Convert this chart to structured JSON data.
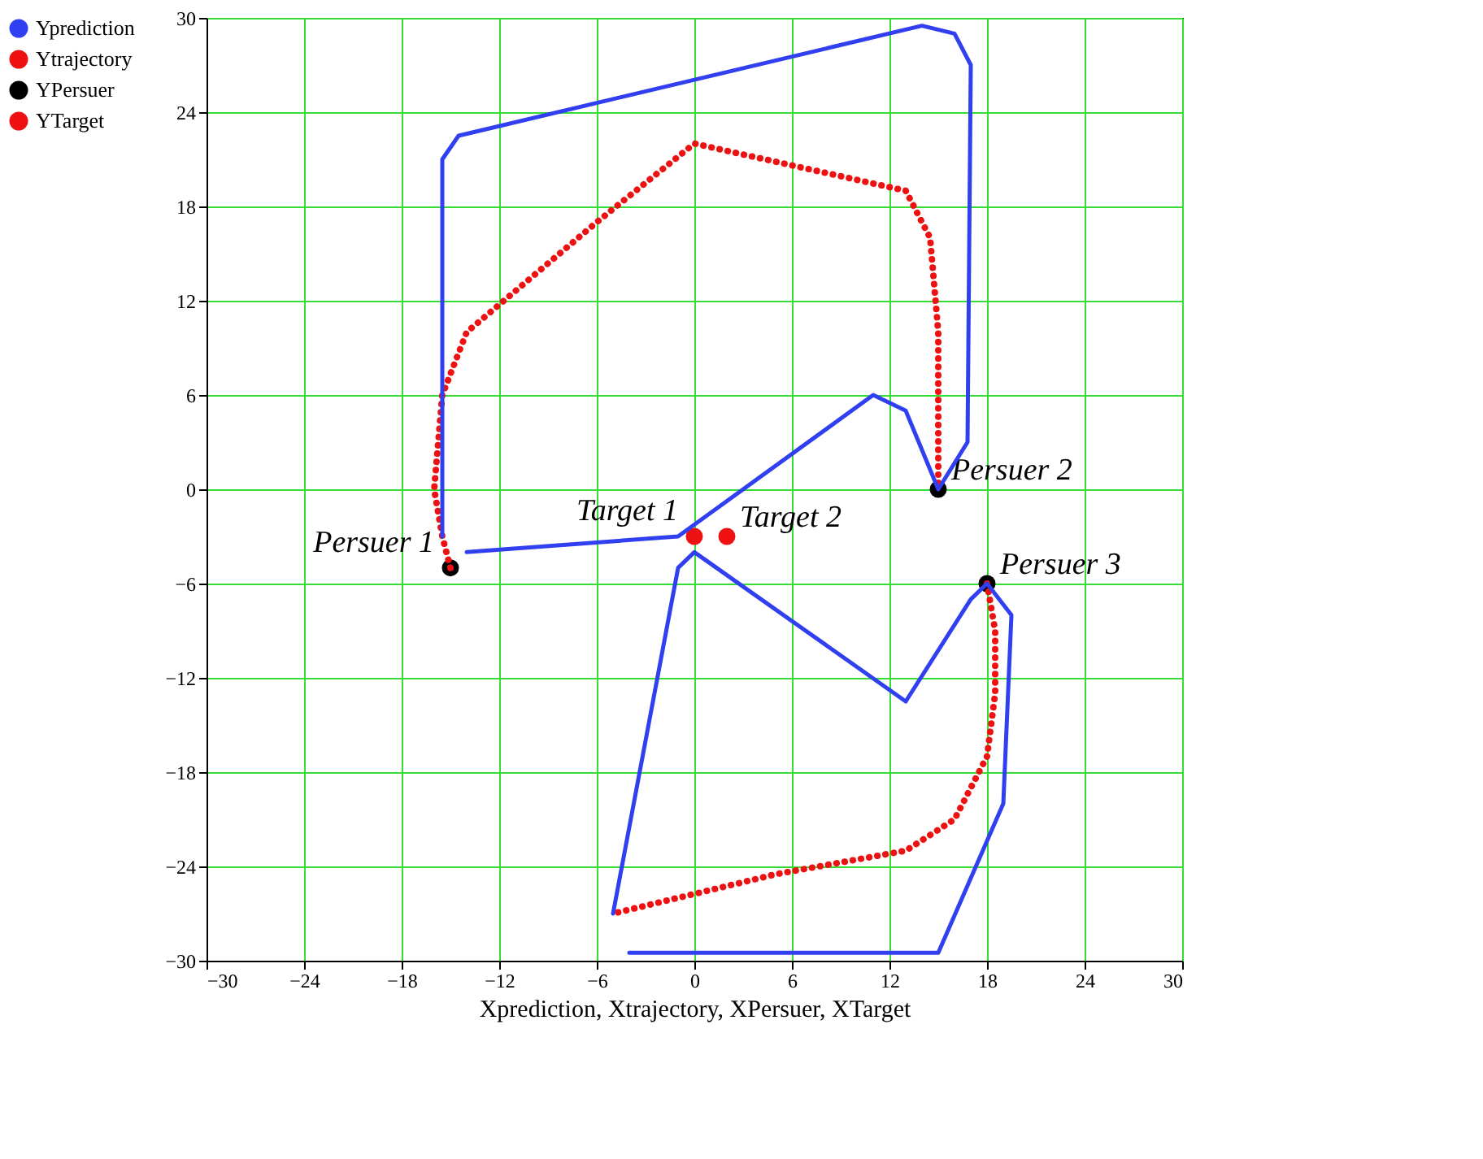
{
  "chart_data": {
    "type": "line",
    "xlabel": "Xprediction, Xtrajectory, XPersuer, XTarget",
    "xlim": [
      -30,
      30
    ],
    "ylim": [
      -30,
      30
    ],
    "xticks": [
      -30,
      -24,
      -18,
      -12,
      -6,
      0,
      6,
      12,
      18,
      24,
      30
    ],
    "yticks": [
      -30,
      -24,
      -18,
      -12,
      -6,
      0,
      6,
      12,
      18,
      24,
      30
    ],
    "grid": true,
    "legend": "left",
    "series": [
      {
        "name": "Yprediction",
        "color": "#3040f0",
        "x": [
          -15.5,
          -15.5,
          -14.5,
          14,
          16,
          17,
          16.8,
          15,
          13,
          11,
          -1,
          -14
        ],
        "values": [
          -3,
          21,
          22.5,
          29.5,
          29,
          27,
          3,
          0,
          5,
          6,
          -3,
          -4
        ]
      },
      {
        "color": "#3040f0",
        "x": [
          -5,
          -1,
          0,
          13,
          17,
          18,
          19.5,
          19,
          15,
          -4
        ],
        "values": [
          -27,
          -5,
          -4,
          -13.5,
          -7,
          -6,
          -8,
          -20,
          -29.5,
          -29.5
        ]
      },
      {
        "name": "Ytrajectory",
        "line_style": "dotted",
        "color": "#ee1111",
        "x": [
          -15,
          -15.5,
          -16,
          -15.5,
          -14,
          -6,
          0,
          13,
          14.5,
          15,
          15,
          15
        ],
        "values": [
          -5,
          -3,
          0,
          6,
          10,
          17,
          22,
          19,
          16,
          10,
          3,
          0
        ]
      },
      {
        "line_style": "dotted",
        "color": "#ee1111",
        "x": [
          18,
          18.5,
          18.5,
          18,
          16,
          13,
          5,
          -5
        ],
        "values": [
          -6,
          -9,
          -13,
          -17,
          -21,
          -23,
          -24.5,
          -27
        ]
      },
      {
        "name": "YPersuer",
        "type": "scatter",
        "marker": "circle",
        "color": "#000000",
        "x": [
          -15,
          15,
          18
        ],
        "values": [
          -5,
          0,
          -6
        ]
      },
      {
        "name": "YTarget",
        "type": "scatter",
        "marker": "circle",
        "color": "#ee1111",
        "x": [
          0,
          2
        ],
        "values": [
          -3,
          -3
        ]
      }
    ],
    "annotations": [
      {
        "text": "Persuer 1",
        "x": -15,
        "y": -5
      },
      {
        "text": "Persuer 2",
        "x": 15,
        "y": 0
      },
      {
        "text": "Persuer 3",
        "x": 18,
        "y": -6
      },
      {
        "text": "Target 1",
        "x": 0,
        "y": -3
      },
      {
        "text": "Target 2",
        "x": 2,
        "y": -3
      }
    ]
  }
}
